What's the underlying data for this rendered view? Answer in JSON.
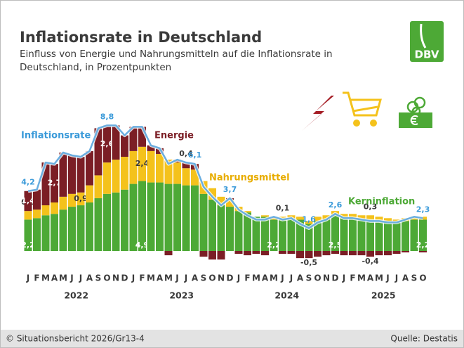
{
  "chart_data": {
    "type": "bar",
    "stacked": true,
    "title": "Inflationsrate in Deutschland",
    "subtitle": [
      "Einfluss von Energie und Nahrungsmitteln auf die Inflationsrate in",
      "Deutschland, in Prozentpunkten"
    ],
    "categories": [
      "J",
      "F",
      "M",
      "A",
      "M",
      "J",
      "J",
      "A",
      "S",
      "O",
      "N",
      "D",
      "J",
      "F",
      "M",
      "A",
      "M",
      "J",
      "J",
      "A",
      "S",
      "O",
      "N",
      "D",
      "J",
      "F",
      "M",
      "A",
      "M",
      "J",
      "J",
      "A",
      "S",
      "O",
      "N",
      "D",
      "J",
      "F",
      "M",
      "A",
      "M",
      "J",
      "J",
      "A",
      "S",
      "O"
    ],
    "years": [
      "2022",
      "2023",
      "2024",
      "2025"
    ],
    "ylim": [
      -1.5,
      10
    ],
    "series": [
      {
        "name": "Kerninflation",
        "color": "#4da936",
        "values": [
          2.2,
          2.3,
          2.5,
          2.6,
          2.9,
          3.1,
          3.2,
          3.4,
          3.7,
          4.0,
          4.1,
          4.3,
          4.7,
          4.9,
          4.8,
          4.8,
          4.7,
          4.7,
          4.6,
          4.6,
          4.0,
          3.6,
          3.2,
          3.1,
          2.8,
          2.7,
          2.4,
          2.4,
          2.2,
          2.3,
          2.3,
          2.2,
          1.9,
          2.1,
          2.2,
          2.5,
          2.3,
          2.3,
          2.2,
          2.2,
          2.1,
          2.1,
          2.0,
          2.1,
          2.2,
          2.2
        ],
        "value_labels": [
          "2,2",
          null,
          null,
          null,
          null,
          null,
          null,
          null,
          null,
          null,
          null,
          null,
          null,
          "4,9",
          null,
          null,
          null,
          null,
          null,
          null,
          null,
          null,
          null,
          null,
          null,
          null,
          null,
          null,
          "2,2",
          null,
          null,
          null,
          null,
          null,
          null,
          "2,5",
          null,
          null,
          null,
          null,
          null,
          null,
          null,
          null,
          null,
          "2,2"
        ]
      },
      {
        "name": "Nahrungsmittel",
        "color": "#f4c21c",
        "values": [
          0.6,
          0.6,
          0.7,
          0.8,
          0.9,
          0.9,
          0.9,
          1.2,
          1.6,
          2.2,
          2.3,
          2.3,
          2.3,
          2.4,
          2.2,
          2.0,
          1.7,
          1.5,
          1.2,
          1.1,
          0.9,
          0.8,
          0.6,
          0.5,
          0.3,
          0.1,
          0.0,
          0.1,
          0.1,
          0.1,
          0.2,
          0.2,
          0.2,
          0.3,
          0.3,
          0.3,
          0.3,
          0.3,
          0.3,
          0.3,
          0.3,
          0.2,
          0.2,
          0.2,
          0.2,
          0.2
        ],
        "value_labels": [
          "0,6",
          null,
          null,
          null,
          null,
          null,
          "0,9",
          null,
          null,
          null,
          null,
          null,
          null,
          "2,4",
          null,
          null,
          null,
          null,
          null,
          null,
          null,
          null,
          null,
          null,
          null,
          null,
          null,
          null,
          null,
          "0,1",
          null,
          null,
          null,
          null,
          null,
          null,
          null,
          null,
          null,
          "0,3",
          null,
          null,
          null,
          null,
          null,
          null
        ]
      },
      {
        "name": "Energie",
        "color": "#7b1e25",
        "values": [
          1.4,
          1.4,
          3.0,
          2.7,
          3.1,
          2.7,
          2.5,
          2.4,
          3.3,
          2.6,
          2.4,
          1.5,
          1.7,
          1.4,
          0.4,
          0.4,
          -0.3,
          0.2,
          0.4,
          0.4,
          -0.4,
          -0.6,
          -0.6,
          0.1,
          -0.2,
          -0.3,
          -0.2,
          -0.3,
          0.1,
          -0.2,
          -0.2,
          -0.5,
          -0.5,
          -0.4,
          -0.3,
          -0.2,
          -0.3,
          -0.3,
          -0.3,
          -0.4,
          -0.3,
          -0.3,
          -0.2,
          -0.1,
          0.0,
          -0.1
        ],
        "value_labels": [
          "1,4",
          null,
          null,
          "2,7",
          null,
          null,
          null,
          null,
          null,
          "2,6",
          null,
          null,
          null,
          null,
          null,
          null,
          null,
          null,
          "0,4",
          null,
          null,
          null,
          null,
          null,
          null,
          null,
          null,
          null,
          null,
          null,
          null,
          null,
          "-0,5",
          null,
          null,
          null,
          null,
          null,
          null,
          "-0,4",
          null,
          null,
          null,
          null,
          null,
          null
        ]
      },
      {
        "name": "Inflationsrate",
        "color": "#6aaee0",
        "type": "line",
        "values": [
          4.2,
          4.3,
          6.2,
          6.1,
          6.9,
          6.7,
          6.6,
          7.0,
          8.6,
          8.8,
          8.8,
          8.1,
          8.7,
          8.7,
          7.4,
          7.2,
          6.1,
          6.4,
          6.2,
          6.1,
          4.5,
          3.8,
          3.2,
          3.7,
          2.9,
          2.5,
          2.2,
          2.2,
          2.4,
          2.2,
          2.3,
          1.9,
          1.6,
          2.0,
          2.2,
          2.6,
          2.3,
          2.3,
          2.2,
          2.1,
          2.1,
          2.0,
          2.0,
          2.2,
          2.4,
          2.3
        ],
        "value_labels": [
          "4,2",
          null,
          null,
          null,
          null,
          null,
          null,
          null,
          null,
          "8,8",
          null,
          null,
          null,
          null,
          null,
          null,
          null,
          null,
          null,
          "6,1",
          null,
          null,
          null,
          "3,7",
          null,
          null,
          null,
          null,
          null,
          null,
          null,
          null,
          "1,6",
          null,
          null,
          "2,6",
          null,
          null,
          null,
          null,
          null,
          null,
          null,
          null,
          null,
          "2,3"
        ]
      }
    ]
  },
  "logo": "DBV",
  "footer_left": "© Situationsbericht 2026/Gr13-4",
  "source": "Quelle: Destatis"
}
